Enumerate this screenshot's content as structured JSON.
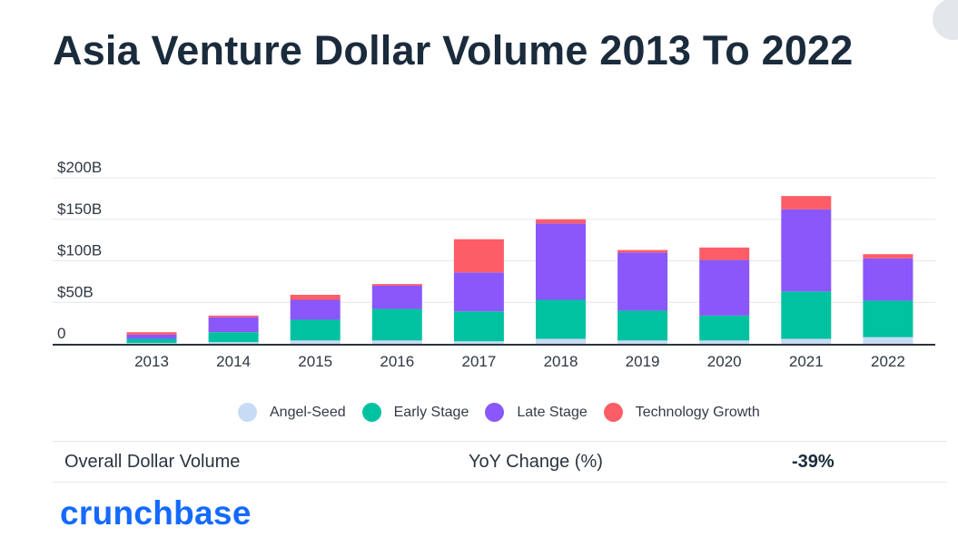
{
  "title": "Asia Venture Dollar Volume 2013 To 2022",
  "chart_data": {
    "type": "bar",
    "stacked": true,
    "categories": [
      "2013",
      "2014",
      "2015",
      "2016",
      "2017",
      "2018",
      "2019",
      "2020",
      "2021",
      "2022"
    ],
    "series": [
      {
        "name": "Angel-Seed",
        "color": "#c8dbf5",
        "values": [
          1,
          2,
          4,
          4,
          3,
          6,
          4,
          4,
          6,
          8
        ]
      },
      {
        "name": "Early Stage",
        "color": "#00c2a0",
        "values": [
          5,
          12,
          25,
          38,
          36,
          47,
          36,
          30,
          57,
          44
        ]
      },
      {
        "name": "Late Stage",
        "color": "#8a57fb",
        "values": [
          5,
          18,
          24,
          28,
          47,
          92,
          70,
          67,
          99,
          51
        ]
      },
      {
        "name": "Technology Growth",
        "color": "#fd5d66",
        "values": [
          3,
          2,
          6,
          2,
          40,
          5,
          3,
          15,
          16,
          5
        ]
      }
    ],
    "y_ticks": [
      {
        "value": 0,
        "label": "0"
      },
      {
        "value": 50,
        "label": "$50B"
      },
      {
        "value": 100,
        "label": "$100B"
      },
      {
        "value": 150,
        "label": "$150B"
      },
      {
        "value": 200,
        "label": "$200B"
      }
    ],
    "ylim": [
      0,
      200
    ],
    "xlabel": "",
    "ylabel": "",
    "grid": true,
    "legend_position": "bottom-center"
  },
  "summary": {
    "label": "Overall Dollar Volume",
    "metric": "YoY Change (%)",
    "value": "-39%"
  },
  "brand": "crunchbase"
}
